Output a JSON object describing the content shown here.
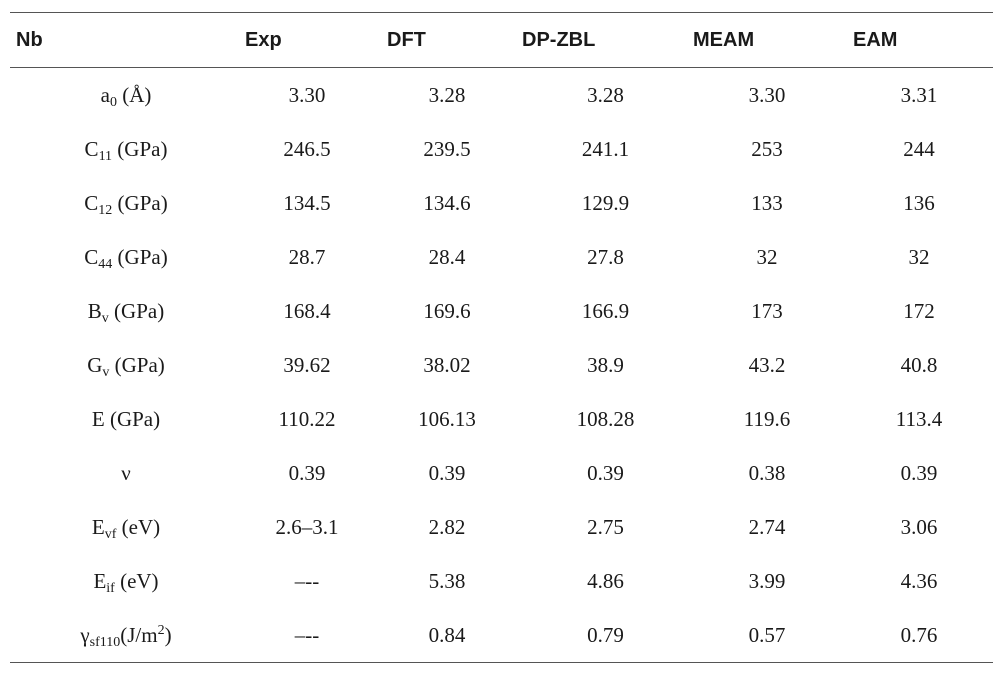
{
  "table": {
    "headers": [
      "Nb",
      "Exp",
      "DFT",
      "DP-ZBL",
      "MEAM",
      "EAM"
    ],
    "rows": [
      {
        "label": {
          "base": "a",
          "sub": "0",
          "unit": " (Å)"
        },
        "values": [
          "3.30",
          "3.28",
          "3.28",
          "3.30",
          "3.31"
        ]
      },
      {
        "label": {
          "base": "C",
          "sub": "11",
          "unit": " (GPa)"
        },
        "values": [
          "246.5",
          "239.5",
          "241.1",
          "253",
          "244"
        ]
      },
      {
        "label": {
          "base": "C",
          "sub": "12",
          "unit": " (GPa)"
        },
        "values": [
          "134.5",
          "134.6",
          "129.9",
          "133",
          "136"
        ]
      },
      {
        "label": {
          "base": "C",
          "sub": "44",
          "unit": " (GPa)"
        },
        "values": [
          "28.7",
          "28.4",
          "27.8",
          "32",
          "32"
        ]
      },
      {
        "label": {
          "base": "B",
          "sub": "v",
          "unit": " (GPa)"
        },
        "values": [
          "168.4",
          "169.6",
          "166.9",
          "173",
          "172"
        ]
      },
      {
        "label": {
          "base": "G",
          "sub": "v",
          "unit": " (GPa)"
        },
        "values": [
          "39.62",
          "38.02",
          "38.9",
          "43.2",
          "40.8"
        ]
      },
      {
        "label": {
          "base": "E",
          "sub": "",
          "unit": " (GPa)"
        },
        "values": [
          "110.22",
          "106.13",
          "108.28",
          "119.6",
          "113.4"
        ]
      },
      {
        "label": {
          "base": "ν",
          "sub": "",
          "unit": ""
        },
        "values": [
          "0.39",
          "0.39",
          "0.39",
          "0.38",
          "0.39"
        ]
      },
      {
        "label": {
          "base": "E",
          "sub": "vf",
          "unit": " (eV)"
        },
        "values": [
          "2.6–3.1",
          "2.82",
          "2.75",
          "2.74",
          "3.06"
        ]
      },
      {
        "label": {
          "base": "E",
          "sub": "if",
          "unit": " (eV)"
        },
        "values": [
          "–--",
          "5.38",
          "4.86",
          "3.99",
          "4.36"
        ]
      },
      {
        "label": {
          "base": "γ",
          "sub": "sf110",
          "unit": "(J/m",
          "sup": "2",
          "unit_end": ")"
        },
        "values": [
          "–--",
          "0.84",
          "0.79",
          "0.57",
          "0.76"
        ]
      }
    ]
  }
}
